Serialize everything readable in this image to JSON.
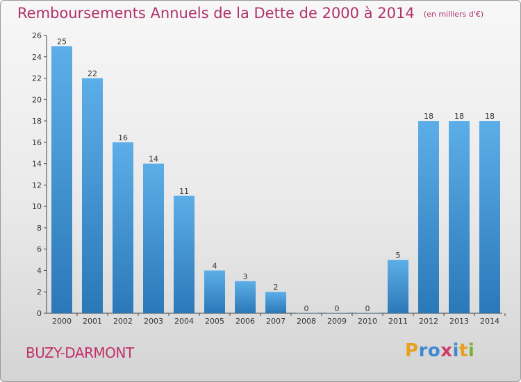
{
  "header": {
    "title": "Remboursements Annuels de la Dette de 2000 à 2014",
    "subtitle": "(en milliers d'€)"
  },
  "commune": "BUZY-DARMONT",
  "logo": {
    "letters": [
      "P",
      "r",
      "o",
      "x",
      "i",
      "t",
      "i"
    ],
    "colors": [
      "#e8a020",
      "#3c8ad0",
      "#3c8ad0",
      "#d03c6a",
      "#3c8ad0",
      "#e8a020",
      "#79b030"
    ]
  },
  "colors": {
    "title": "#b0306a",
    "bar_top": "#5caee8",
    "bar_bottom": "#2b78b8"
  },
  "chart_data": {
    "type": "bar",
    "categories": [
      "2000",
      "2001",
      "2002",
      "2003",
      "2004",
      "2005",
      "2006",
      "2007",
      "2008",
      "2009",
      "2010",
      "2011",
      "2012",
      "2013",
      "2014"
    ],
    "values": [
      25,
      22,
      16,
      14,
      11,
      4,
      3,
      2,
      0,
      0,
      0,
      5,
      18,
      18,
      18
    ],
    "ylim": [
      0,
      26
    ],
    "yticks": [
      0,
      2,
      4,
      6,
      8,
      10,
      12,
      14,
      16,
      18,
      20,
      22,
      24,
      26
    ],
    "grid": false,
    "xlabel": "",
    "ylabel": ""
  }
}
